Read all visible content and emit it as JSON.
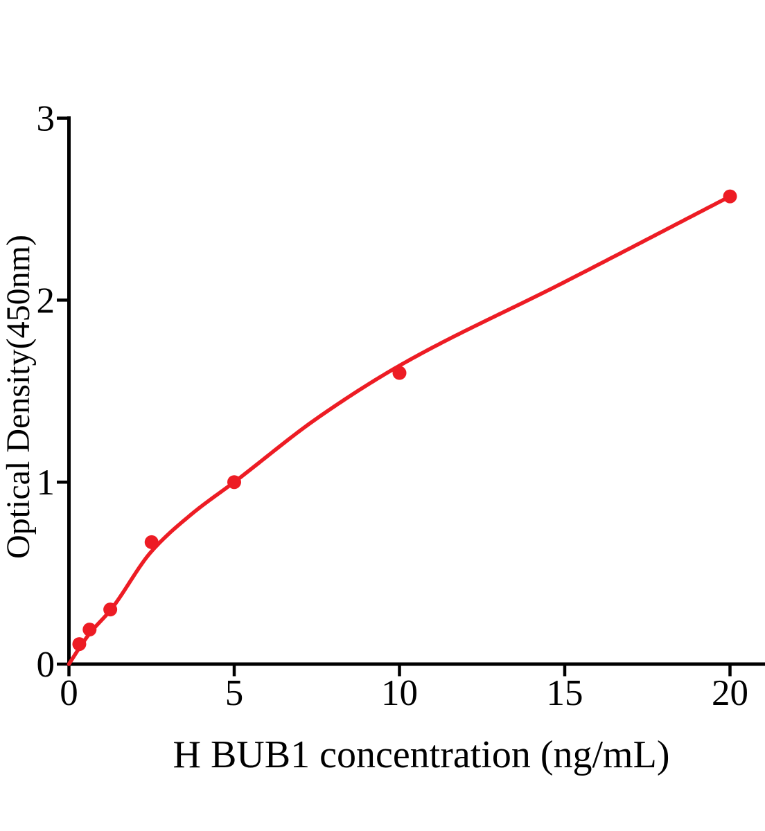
{
  "figure": {
    "background": "#ffffff",
    "axis_color": "#000000",
    "accent_red": "#ed1c24"
  },
  "chart_data": {
    "type": "scatter",
    "title": "",
    "xlabel": "H BUB1 concentration (ng/mL)",
    "ylabel": "Optical Density(450nm)",
    "xlim": [
      0,
      21
    ],
    "ylim": [
      0,
      3
    ],
    "x_ticks": [
      0,
      5,
      10,
      15,
      20
    ],
    "x_tick_labels": [
      "0",
      "5",
      "10",
      "15",
      "20"
    ],
    "y_ticks": [
      0,
      1,
      2,
      3
    ],
    "y_tick_labels": [
      "0",
      "1",
      "2",
      "3"
    ],
    "grid": false,
    "legend_position": "none",
    "series": [
      {
        "name": "standard data points",
        "type": "scatter",
        "color": "#ed1c24",
        "x": [
          0.313,
          0.625,
          1.25,
          2.5,
          5,
          10,
          20
        ],
        "y": [
          0.11,
          0.19,
          0.3,
          0.67,
          1.0,
          1.6,
          2.57
        ]
      },
      {
        "name": "fitted curve",
        "type": "line",
        "color": "#ed1c24",
        "x": [
          0,
          0.313,
          0.625,
          1.25,
          2.5,
          3.75,
          5,
          7.5,
          10,
          15,
          20
        ],
        "y": [
          0,
          0.088,
          0.168,
          0.295,
          0.62,
          0.83,
          1.0,
          1.35,
          1.64,
          2.1,
          2.57
        ]
      }
    ]
  }
}
